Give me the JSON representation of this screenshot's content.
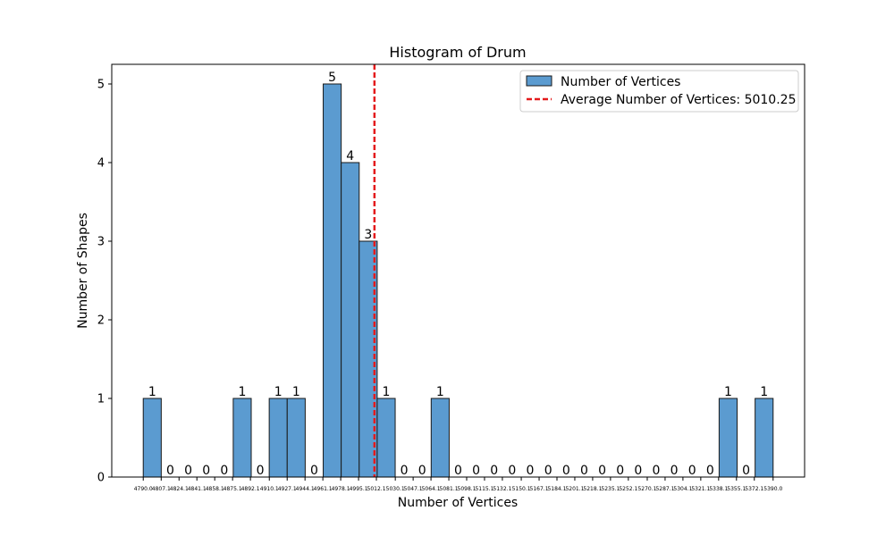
{
  "chart_data": {
    "type": "bar",
    "title": "Histogram of Drum",
    "xlabel": "Number of Vertices",
    "ylabel": "Number of Shapes",
    "ylim": [
      0,
      5.25
    ],
    "yticks": [
      0,
      1,
      2,
      3,
      4,
      5
    ],
    "bin_edges": [
      4790.0,
      4807.1,
      4824.1,
      4841.1,
      4858.1,
      4875.1,
      4892.1,
      4910.1,
      4927.1,
      4944.1,
      4961.1,
      4978.1,
      4995.1,
      5012.1,
      5030.1,
      5047.1,
      5064.1,
      5081.1,
      5098.1,
      5115.1,
      5132.1,
      5150.1,
      5167.1,
      5184.1,
      5201.1,
      5218.1,
      5235.1,
      5252.1,
      5270.1,
      5287.1,
      5304.1,
      5321.1,
      5338.1,
      5355.1,
      5372.1,
      5390.0
    ],
    "xtick_labels": [
      "4790.0",
      "4807.1",
      "4824.1",
      "4841.1",
      "4858.1",
      "4875.1",
      "4892.1",
      "4910.1",
      "4927.1",
      "4944.1",
      "4961.1",
      "4978.1",
      "4995.1",
      "5012.1",
      "5030.1",
      "5047.1",
      "5064.1",
      "5081.1",
      "5098.1",
      "5115.1",
      "5132.1",
      "5150.1",
      "5167.1",
      "5184.1",
      "5201.1",
      "5218.1",
      "5235.1",
      "5252.1",
      "5270.1",
      "5287.1",
      "5304.1",
      "5321.1",
      "5338.1",
      "5355.1",
      "5372.1",
      "5390.0"
    ],
    "series": [
      {
        "name": "Number of Vertices",
        "values": [
          1,
          0,
          0,
          0,
          0,
          1,
          0,
          1,
          1,
          0,
          5,
          4,
          3,
          1,
          0,
          0,
          1,
          0,
          0,
          0,
          0,
          0,
          0,
          0,
          0,
          0,
          0,
          0,
          0,
          0,
          0,
          0,
          1,
          0,
          1
        ]
      }
    ],
    "average": {
      "label": "Average Number of Vertices: 5010.25",
      "value": 5010.25
    },
    "legend_position": "top-right",
    "grid": false,
    "colors": {
      "bar_fill": "#5b9bd0",
      "bar_edge": "#1a1a1a",
      "average_line": "#e41a1c"
    }
  }
}
